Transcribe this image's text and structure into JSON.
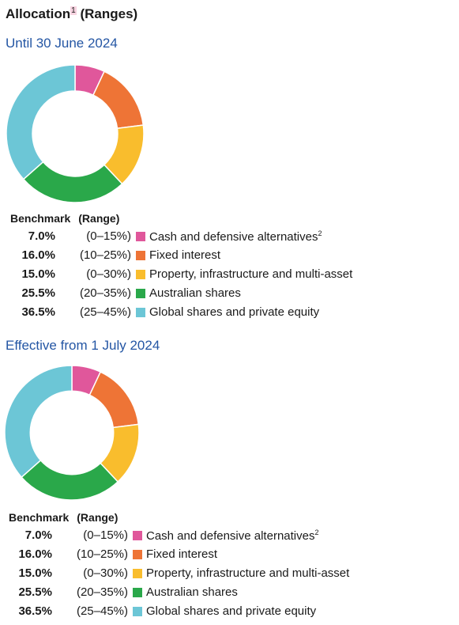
{
  "title": {
    "text": "Allocation",
    "superscript": "1",
    "suffix": " (Ranges)"
  },
  "legend_headers": {
    "benchmark": "Benchmark",
    "range": "(Range)"
  },
  "colors": {
    "cash": "#e0579b",
    "fixed": "#ee7436",
    "property": "#f9bd2d",
    "aus": "#2aa84a",
    "global": "#6cc6d6",
    "subtitle": "#2456a4"
  },
  "chart_data": [
    {
      "type": "pie",
      "subtitle": "Until 30 June 2024",
      "categories": [
        "Cash and defensive alternatives",
        "Fixed interest",
        "Property, infrastructure and multi-asset",
        "Australian shares",
        "Global shares and private equity"
      ],
      "values": [
        7.0,
        16.0,
        15.0,
        25.5,
        36.5
      ],
      "benchmark_labels": [
        "7.0%",
        "16.0%",
        "15.0%",
        "25.5%",
        "36.5%"
      ],
      "ranges": [
        "(0–15%)",
        "(10–25%)",
        "(0–30%)",
        "(20–35%)",
        "(25–45%)"
      ],
      "label_superscripts": [
        "2",
        "",
        "",
        "",
        ""
      ],
      "colors": [
        "#e0579b",
        "#ee7436",
        "#f9bd2d",
        "#2aa84a",
        "#6cc6d6"
      ],
      "donut": true
    },
    {
      "type": "pie",
      "subtitle": "Effective from 1 July 2024",
      "categories": [
        "Cash and defensive alternatives",
        "Fixed interest",
        "Property, infrastructure and multi-asset",
        "Australian shares",
        "Global shares and private equity"
      ],
      "values": [
        7.0,
        16.0,
        15.0,
        25.5,
        36.5
      ],
      "benchmark_labels": [
        "7.0%",
        "16.0%",
        "15.0%",
        "25.5%",
        "36.5%"
      ],
      "ranges": [
        "(0–15%)",
        "(10–25%)",
        "(0–30%)",
        "(20–35%)",
        "(25–45%)"
      ],
      "label_superscripts": [
        "2",
        "",
        "",
        "",
        ""
      ],
      "colors": [
        "#e0579b",
        "#ee7436",
        "#f9bd2d",
        "#2aa84a",
        "#6cc6d6"
      ],
      "donut": true
    }
  ]
}
